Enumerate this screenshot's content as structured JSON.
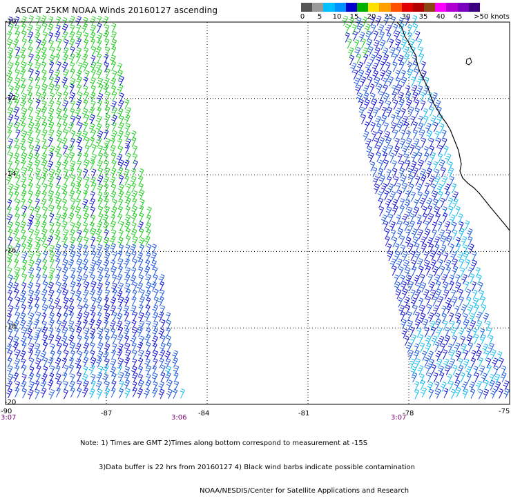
{
  "title": "ASCAT 25KM NOAA Winds 20160127 ascending",
  "colorbar": {
    "colors": [
      "#555555",
      "#9a9a9a",
      "#00bfff",
      "#0090ff",
      "#0000cc",
      "#00b000",
      "#ffe000",
      "#ffa000",
      "#ff5000",
      "#e00000",
      "#b00000",
      "#8b4513",
      "#ff00ff",
      "#b000d0",
      "#7a00c0",
      "#3a0080"
    ],
    "labels": [
      "0",
      "5",
      "10",
      "15",
      "20",
      "25",
      "30",
      "35",
      "40",
      "45",
      ">50 knots"
    ],
    "label_values": [
      0,
      5,
      10,
      15,
      20,
      25,
      30,
      35,
      40,
      45,
      50
    ]
  },
  "map": {
    "lat_labels": [
      "-10",
      "-12",
      "-14",
      "-16",
      "-18",
      "-20"
    ],
    "lon_labels": [
      "-87",
      "-84",
      "-81",
      "-78",
      "-75"
    ],
    "corner_lon_label": "-90",
    "time_labels": [
      "3:07",
      "3:06",
      "3:07"
    ],
    "lat_values": [
      -10,
      -12,
      -14,
      -16,
      -18,
      -20
    ],
    "lon_values": [
      -87,
      -84,
      -81,
      -78,
      -75
    ],
    "lon_range": [
      -90,
      -75
    ],
    "lat_range": [
      -20,
      -10
    ]
  },
  "notes": [
    "Note: 1) Times are GMT 2)Times along bottom correspond to measurement at -15S",
    "3)Data buffer is 22 hrs from 20160127 4) Black wind barbs indicate possible contamination",
    "NOAA/NESDIS/Center for Satellite Applications and Research"
  ],
  "barb_colors": {
    "green": "#22cc22",
    "blue": "#1010cc",
    "mid_blue": "#1a55dd",
    "cyan": "#11bbee",
    "coast": "#000000"
  }
}
